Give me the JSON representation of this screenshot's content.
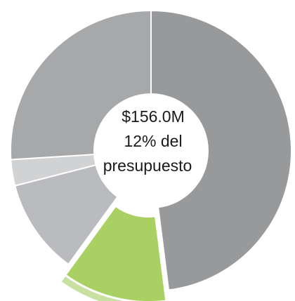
{
  "chart_data": {
    "type": "donut",
    "values": [
      48,
      12,
      11,
      3,
      26
    ],
    "colors": [
      "#98999b",
      "#a9d063",
      "#babbbf",
      "#d1d2d3",
      "#a7a8aa"
    ],
    "highlight_index": 1,
    "highlight_shadow_color": "#c9e0a3",
    "annotations": [
      "$156.0M",
      "12% del",
      "presupuesto"
    ]
  }
}
